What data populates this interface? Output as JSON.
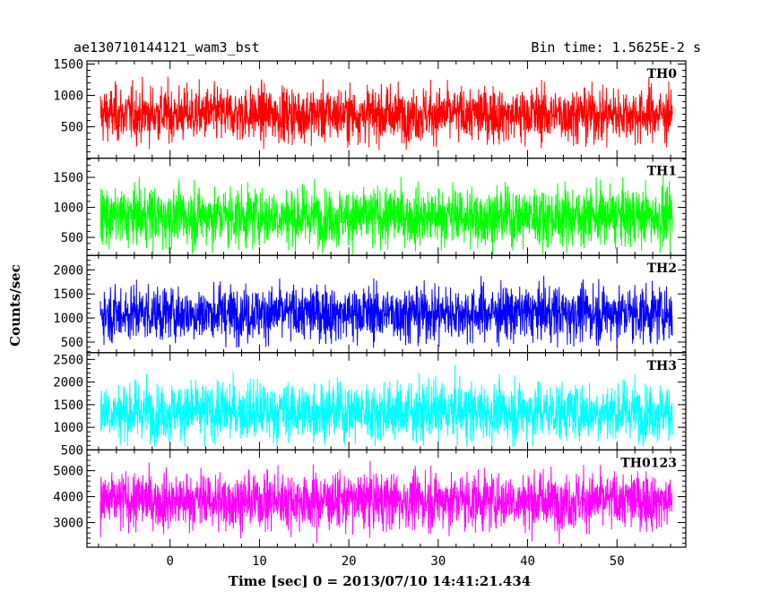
{
  "header": {
    "title": "ae130710144121_wam3_bst",
    "bin_time": "Bin time: 1.5625E-2 s"
  },
  "chart_data": {
    "type": "line",
    "xlabel": "Time [sec] 0 = 2013/07/10 14:41:21.434",
    "ylabel": "Counts/sec",
    "xlim": [
      -9.3,
      57.7
    ],
    "x_range": [
      -7.8,
      56.2
    ],
    "x_ticks": [
      0,
      10,
      20,
      30,
      40,
      50
    ],
    "x_tick_labels": [
      "0",
      "10",
      "20",
      "30",
      "40",
      "50"
    ],
    "panels": [
      {
        "name": "TH0",
        "color": "#ff0000",
        "ylim": [
          0,
          1550
        ],
        "y_ticks": [
          500,
          1000,
          1500
        ],
        "y_tick_labels": [
          "500",
          "1000",
          "1500"
        ],
        "mean": 700,
        "low": 120,
        "high": 1500
      },
      {
        "name": "TH1",
        "color": "#00ff00",
        "ylim": [
          200,
          1820
        ],
        "y_ticks": [
          500,
          1000,
          1500
        ],
        "y_tick_labels": [
          "500",
          "1000",
          "1500"
        ],
        "mean": 850,
        "low": 200,
        "high": 1750
      },
      {
        "name": "TH2",
        "color": "#0000ff",
        "ylim": [
          280,
          2300
        ],
        "y_ticks": [
          500,
          1000,
          1500,
          2000
        ],
        "y_tick_labels": [
          "500",
          "1000",
          "1500",
          "2000"
        ],
        "mean": 1100,
        "low": 380,
        "high": 2200
      },
      {
        "name": "TH3",
        "color": "#00ffff",
        "ylim": [
          500,
          2650
        ],
        "y_ticks": [
          500,
          1000,
          1500,
          2000,
          2500
        ],
        "y_tick_labels": [
          "500",
          "1000",
          "1500",
          "2000",
          "2500"
        ],
        "mean": 1350,
        "low": 550,
        "high": 2600
      },
      {
        "name": "TH0123",
        "color": "#ff00ff",
        "ylim": [
          2050,
          5800
        ],
        "y_ticks": [
          3000,
          4000,
          5000
        ],
        "y_tick_labels": [
          "3000",
          "4000",
          "5000"
        ],
        "mean": 3850,
        "low": 2150,
        "high": 5600
      }
    ]
  }
}
